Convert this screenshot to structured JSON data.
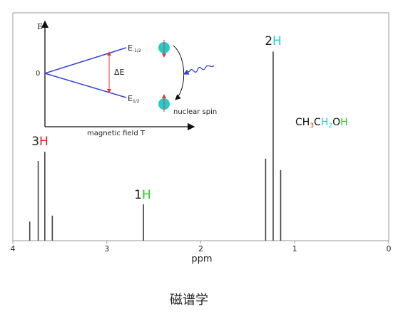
{
  "chart_data": {
    "type": "stem",
    "xlabel": "ppm",
    "x": [
      3.82,
      3.73,
      3.66,
      3.58,
      2.61,
      1.31,
      1.23,
      1.15
    ],
    "values": [
      8.4,
      35,
      39,
      11,
      16,
      36,
      83,
      31
    ],
    "color": "#444444",
    "xlim": [
      4,
      0
    ],
    "xticks": [
      4,
      3,
      2,
      1,
      0
    ],
    "ylim": [
      0,
      100
    ],
    "annotations": [
      {
        "count": "3",
        "atom": "H",
        "color": "#e8201c"
      },
      {
        "count": "1",
        "atom": "H",
        "color": "#22cc22"
      },
      {
        "count": "2",
        "atom": "H",
        "color": "#22cccc"
      }
    ],
    "formula": [
      {
        "text": "CH",
        "color": "#111111"
      },
      {
        "text": "3",
        "color": "#e8201c",
        "sub": true
      },
      {
        "text": "C",
        "color": "#111111"
      },
      {
        "text": "H",
        "color": "#22cccc"
      },
      {
        "text": "2",
        "color": "#22cccc",
        "sub": true
      },
      {
        "text": "O",
        "color": "#111111"
      },
      {
        "text": "H",
        "color": "#22cc22"
      }
    ]
  },
  "inset": {
    "y_axis": "E",
    "zero": "0",
    "upper": "E",
    "upper_sub": "-1/2",
    "lower": "E",
    "lower_sub": "1/2",
    "gap": "ΔE",
    "x_axis": "magnetic field T",
    "spin": "nuclear spin"
  },
  "caption": "磁谱学"
}
